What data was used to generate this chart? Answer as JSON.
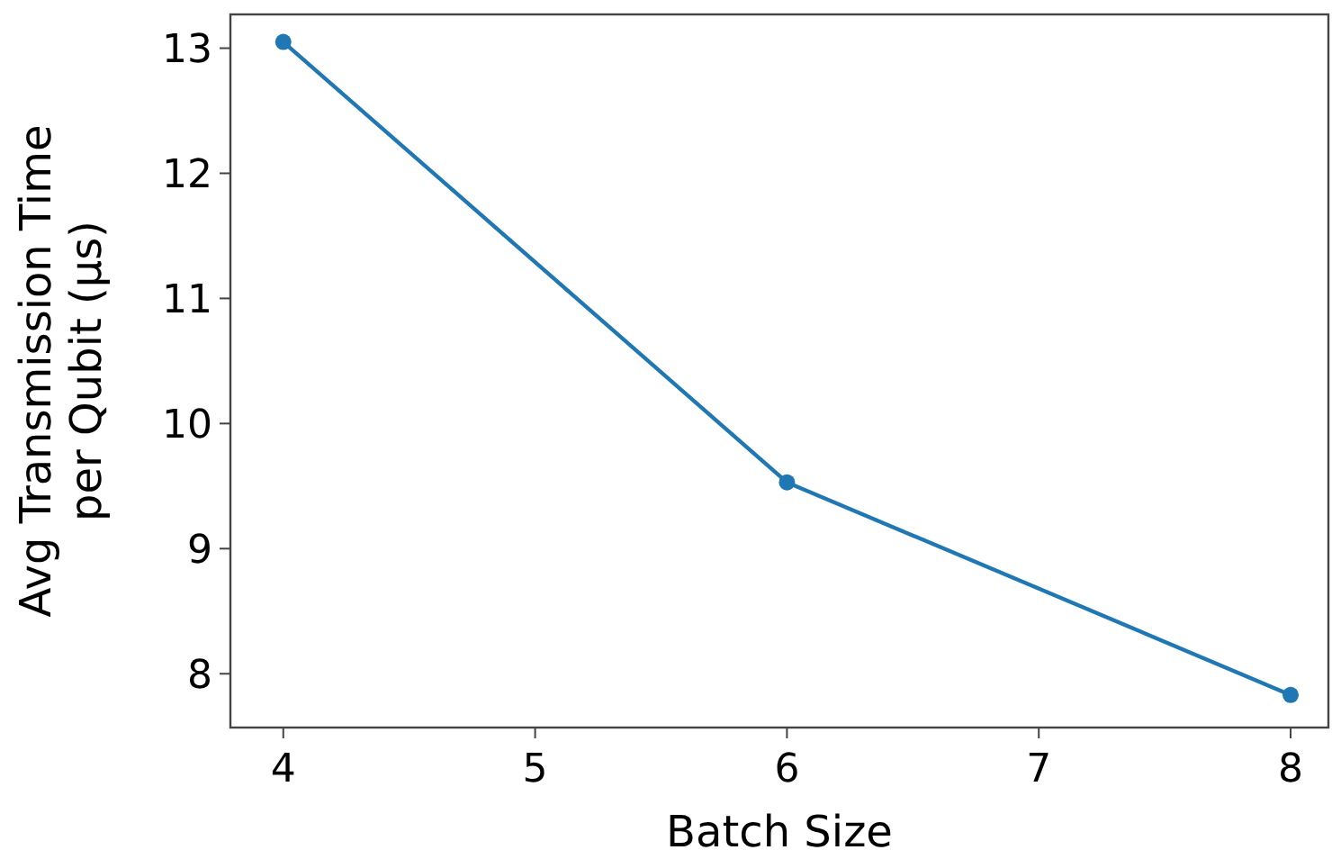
{
  "chart_data": {
    "type": "line",
    "xlabel": "Batch Size",
    "ylabel": "Avg Transmission Time\nper Qubit (μs)",
    "x": [
      4,
      6,
      8
    ],
    "series": [
      {
        "color": "#1f77b4",
        "values": [
          13.05,
          9.53,
          7.83
        ]
      }
    ],
    "xlim": [
      3.79,
      8.15
    ],
    "xticks": [
      4,
      5,
      6,
      7,
      8
    ],
    "ylim": [
      7.57,
      13.27
    ],
    "yticks": [
      8,
      9,
      10,
      11,
      12,
      13
    ],
    "grid": false,
    "marker": "circle",
    "line_style": "solid"
  }
}
